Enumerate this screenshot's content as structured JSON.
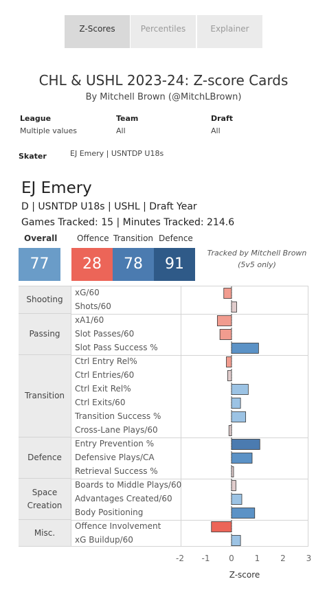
{
  "tabs": [
    {
      "label": "Z-Scores",
      "active": true
    },
    {
      "label": "Percentiles",
      "active": false
    },
    {
      "label": "Explainer",
      "active": false
    }
  ],
  "header": {
    "title": "CHL & USHL 2023-24: Z-score Cards",
    "byline": "By Mitchell Brown (@MitchLBrown)"
  },
  "filters": {
    "league_label": "League",
    "league_value": "Multiple values",
    "team_label": "Team",
    "team_value": "All",
    "draft_label": "Draft",
    "draft_value": "All",
    "skater_label": "Skater",
    "skater_value": "EJ Emery | USNTDP U18s"
  },
  "player": {
    "name": "EJ Emery",
    "info": "D | USNTDP U18s | USHL | Draft Year",
    "tracking": "Games Tracked: 15 | Minutes Tracked: 214.6"
  },
  "summary": {
    "overall_label": "Overall",
    "overall_value": "77",
    "offence_label": "Offence",
    "offence_value": "28",
    "transition_label": "Transition",
    "transition_value": "78",
    "defence_label": "Defence",
    "defence_value": "91",
    "colors": {
      "overall": "#6a9cc8",
      "offence": "#ec6558",
      "transition": "#4b7bb0",
      "defence": "#2f5a88"
    },
    "note_line1": "Tracked by Mitchell Brown",
    "note_line2": "(5v5 only)"
  },
  "categories": [
    {
      "label": "Shooting",
      "metrics": [
        "xG/60",
        "Shots/60"
      ]
    },
    {
      "label": "Passing",
      "metrics": [
        "xA1/60",
        "Slot Passes/60",
        "Slot Pass Success %"
      ]
    },
    {
      "label": "Transition",
      "metrics": [
        "Ctrl Entry Rel%",
        "Ctrl Entries/60",
        "Ctrl Exit Rel%",
        "Ctrl Exits/60",
        "Transition Success %",
        "Cross-Lane Plays/60"
      ]
    },
    {
      "label": "Defence",
      "metrics": [
        "Entry Prevention %",
        "Defensive Plays/CA",
        "Retrieval Success %"
      ]
    },
    {
      "label": "Space Creation",
      "metrics": [
        "Boards to Middle Plays/60",
        "Advantages Created/60",
        "Body Positioning"
      ]
    },
    {
      "label": "Misc.",
      "metrics": [
        "Offence Involvement",
        "xG Buildup/60"
      ]
    }
  ],
  "chart_data": {
    "type": "bar",
    "orientation": "horizontal",
    "xlabel": "Z-score",
    "xlim": [
      -2,
      3
    ],
    "xticks": [
      "-2",
      "-1",
      "0",
      "1",
      "2",
      "3"
    ],
    "categories": [
      "xG/60",
      "Shots/60",
      "xA1/60",
      "Slot Passes/60",
      "Slot Pass Success %",
      "Ctrl Entry Rel%",
      "Ctrl Entries/60",
      "Ctrl Exit Rel%",
      "Ctrl Exits/60",
      "Transition Success %",
      "Cross-Lane Plays/60",
      "Entry Prevention %",
      "Defensive Plays/CA",
      "Retrieval Success %",
      "Boards to Middle Plays/60",
      "Advantages Created/60",
      "Body Positioning",
      "Offence Involvement",
      "xG Buildup/60"
    ],
    "values": [
      -0.3,
      0.2,
      -0.55,
      -0.45,
      1.05,
      -0.2,
      -0.15,
      0.65,
      0.35,
      0.55,
      -0.1,
      1.1,
      0.8,
      0.08,
      0.17,
      0.4,
      0.9,
      -0.78,
      0.35
    ],
    "colors": [
      "#f19c8f",
      "#e0cccc",
      "#f19c8f",
      "#f19c8f",
      "#5b92c6",
      "#f19c8f",
      "#e0cccc",
      "#9cc3e4",
      "#9cc3e4",
      "#9cc3e4",
      "#e0cccc",
      "#4b7bb0",
      "#5b92c6",
      "#e0cccc",
      "#e0cccc",
      "#9cc3e4",
      "#5b92c6",
      "#ec6558",
      "#9cc3e4"
    ]
  }
}
